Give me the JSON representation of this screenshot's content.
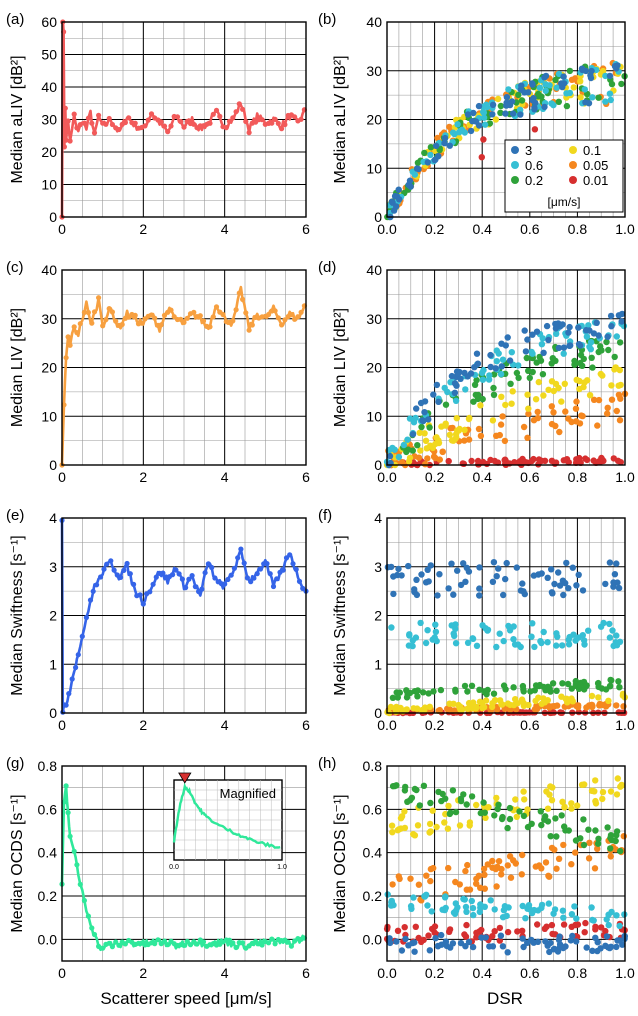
{
  "figure": {
    "bottom_xlabel_left": "Scatterer speed [μm/s]",
    "bottom_xlabel_right": "DSR",
    "legend_unit": "[μm/s]",
    "inset_label": "Magnified",
    "inset_xticks": [
      "0.0",
      "1.0"
    ]
  },
  "chart_data": [
    {
      "id": "a",
      "panel_label": "(a)",
      "type": "line",
      "side": "left",
      "ylabel": "Median aLIV [dB²]",
      "xlim": [
        0,
        6
      ],
      "ylim": [
        0,
        60
      ],
      "xticks": [
        0,
        2,
        4,
        6
      ],
      "yticks": [
        0,
        10,
        20,
        30,
        40,
        50,
        60
      ],
      "grid": true,
      "color": "#f25a5a",
      "series": [
        {
          "x": [
            0,
            0.02,
            0.04,
            0.06,
            0.08,
            0.1,
            0.15,
            0.2,
            0.3,
            0.4,
            0.5,
            0.6,
            0.7,
            0.8,
            0.9,
            1.0,
            1.2,
            1.4,
            1.6,
            1.8,
            2.0,
            2.2,
            2.4,
            2.6,
            2.8,
            3.0,
            3.2,
            3.4,
            3.6,
            3.8,
            4.0,
            4.2,
            4.4,
            4.6,
            4.8,
            5.0,
            5.2,
            5.4,
            5.6,
            5.8,
            6.0
          ],
          "y": [
            0,
            60,
            58,
            22,
            33,
            24,
            29,
            23,
            31,
            26,
            30,
            27,
            32,
            25,
            31,
            28,
            30,
            26,
            31,
            28,
            27,
            32,
            29,
            26,
            31,
            28,
            30,
            27,
            29,
            32,
            28,
            30,
            35,
            27,
            31,
            29,
            30,
            28,
            31,
            29,
            33
          ]
        }
      ]
    },
    {
      "id": "b",
      "panel_label": "(b)",
      "type": "scatter",
      "side": "right",
      "ylabel": "Median aLIV [dB²]",
      "xlim": [
        0,
        1
      ],
      "ylim": [
        0,
        40
      ],
      "xticks": [
        0,
        0.2,
        0.4,
        0.6,
        0.8,
        1.0
      ],
      "yticks": [
        0,
        10,
        20,
        30,
        40
      ],
      "grid": true,
      "model": "sat",
      "params": {
        "max": 29,
        "k": 3.2,
        "spread": 3.0,
        "floor": 0
      },
      "legend": true,
      "legend_placement": "bottom-right"
    },
    {
      "id": "c",
      "panel_label": "(c)",
      "type": "line",
      "side": "left",
      "ylabel": "Median LIV [dB²]",
      "xlim": [
        0,
        6
      ],
      "ylim": [
        0,
        40
      ],
      "xticks": [
        0,
        2,
        4,
        6
      ],
      "yticks": [
        0,
        10,
        20,
        30,
        40
      ],
      "grid": true,
      "color": "#f7a040",
      "series": [
        {
          "x": [
            0,
            0.05,
            0.1,
            0.15,
            0.2,
            0.3,
            0.4,
            0.5,
            0.6,
            0.7,
            0.8,
            0.9,
            1.0,
            1.2,
            1.4,
            1.6,
            1.8,
            2.0,
            2.2,
            2.4,
            2.6,
            2.8,
            3.0,
            3.2,
            3.4,
            3.6,
            3.8,
            4.0,
            4.2,
            4.4,
            4.6,
            4.8,
            5.0,
            5.2,
            5.4,
            5.6,
            5.8,
            6.0
          ],
          "y": [
            0,
            12,
            22,
            26,
            25,
            28,
            27,
            30,
            33,
            29,
            31,
            34,
            29,
            32,
            28,
            31,
            30,
            29,
            31,
            28,
            32,
            30,
            29,
            31,
            30,
            28,
            33,
            30,
            29,
            36,
            28,
            31,
            30,
            32,
            29,
            31,
            30,
            33
          ]
        }
      ]
    },
    {
      "id": "d",
      "panel_label": "(d)",
      "type": "scatter",
      "side": "right",
      "ylabel": "Median LIV [dB²]",
      "xlim": [
        0,
        1
      ],
      "ylim": [
        0,
        40
      ],
      "xticks": [
        0,
        0.2,
        0.4,
        0.6,
        0.8,
        1.0
      ],
      "yticks": [
        0,
        10,
        20,
        30,
        40
      ],
      "grid": true,
      "model": "liv",
      "params": {
        "spread": 2.5
      }
    },
    {
      "id": "e",
      "panel_label": "(e)",
      "type": "line",
      "side": "left",
      "ylabel": "Median Swiftness [s⁻¹]",
      "xlim": [
        0,
        6
      ],
      "ylim": [
        0,
        4
      ],
      "xticks": [
        0,
        2,
        4,
        6
      ],
      "yticks": [
        0,
        1,
        2,
        3,
        4
      ],
      "grid": true,
      "color": "#3564e8",
      "series": [
        {
          "x": [
            0,
            0.02,
            0.05,
            0.1,
            0.2,
            0.3,
            0.4,
            0.5,
            0.6,
            0.7,
            0.8,
            0.9,
            1.0,
            1.1,
            1.2,
            1.4,
            1.6,
            1.8,
            2.0,
            2.2,
            2.4,
            2.6,
            2.8,
            3.0,
            3.2,
            3.4,
            3.6,
            3.8,
            4.0,
            4.2,
            4.4,
            4.6,
            4.8,
            5.0,
            5.2,
            5.4,
            5.6,
            5.8,
            6.0
          ],
          "y": [
            4,
            0,
            0.1,
            0.2,
            0.5,
            0.9,
            1.2,
            1.6,
            1.9,
            2.3,
            2.6,
            2.7,
            2.9,
            3.0,
            3.1,
            2.8,
            3.0,
            2.5,
            2.3,
            2.6,
            2.9,
            2.7,
            3.0,
            2.6,
            2.8,
            2.4,
            3.1,
            2.7,
            2.6,
            2.9,
            3.3,
            2.7,
            2.9,
            3.1,
            2.6,
            2.9,
            3.3,
            2.8,
            2.5
          ]
        }
      ]
    },
    {
      "id": "f",
      "panel_label": "(f)",
      "type": "scatter",
      "side": "right",
      "ylabel": "Median Swiftness [s⁻¹]",
      "xlim": [
        0,
        1
      ],
      "ylim": [
        0,
        4
      ],
      "xticks": [
        0,
        0.2,
        0.4,
        0.6,
        0.8,
        1.0
      ],
      "yticks": [
        0,
        1,
        2,
        3,
        4
      ],
      "grid": true,
      "model": "flat",
      "params": {
        "levels": [
          2.75,
          1.6,
          0.4,
          0.05,
          0.02,
          0.01
        ],
        "slopes": [
          0,
          0,
          0.2,
          0.3,
          0.15,
          0
        ],
        "spread": [
          0.35,
          0.25,
          0.1,
          0.08,
          0.04,
          0.01
        ]
      }
    },
    {
      "id": "g",
      "panel_label": "(g)",
      "type": "line",
      "side": "left",
      "ylabel": "Median OCDS [s⁻¹]",
      "xlim": [
        0,
        6
      ],
      "ylim": [
        -0.1,
        0.8
      ],
      "xticks": [
        0,
        2,
        4,
        6
      ],
      "yticks": [
        0.0,
        0.2,
        0.4,
        0.6,
        0.8
      ],
      "grid": true,
      "color": "#2fe89a",
      "series": [
        {
          "x": [
            0,
            0.05,
            0.1,
            0.15,
            0.2,
            0.3,
            0.4,
            0.5,
            0.6,
            0.7,
            0.8,
            0.9,
            1.0,
            1.2,
            1.4,
            1.6,
            1.8,
            2.0,
            2.4,
            2.8,
            3.2,
            3.6,
            4.0,
            4.4,
            4.8,
            5.2,
            5.6,
            6.0
          ],
          "y": [
            0.25,
            0.62,
            0.7,
            0.58,
            0.48,
            0.4,
            0.3,
            0.22,
            0.14,
            0.08,
            0.02,
            -0.03,
            -0.04,
            -0.02,
            -0.03,
            -0.01,
            -0.02,
            -0.02,
            -0.01,
            -0.03,
            -0.01,
            -0.02,
            -0.01,
            -0.03,
            -0.02,
            -0.01,
            -0.02,
            0.01
          ]
        }
      ]
    },
    {
      "id": "h",
      "panel_label": "(h)",
      "type": "scatter",
      "side": "right",
      "ylabel": "Median OCDS [s⁻¹]",
      "xlim": [
        0,
        1
      ],
      "ylim": [
        -0.1,
        0.8
      ],
      "xticks": [
        0,
        0.2,
        0.4,
        0.6,
        0.8,
        1.0
      ],
      "yticks": [
        0.0,
        0.2,
        0.4,
        0.6,
        0.8
      ],
      "grid": true,
      "model": "flat",
      "params": {
        "levels": [
          -0.02,
          0.18,
          0.7,
          0.52,
          0.22,
          0.02
        ],
        "slopes": [
          0,
          -0.08,
          -0.25,
          0.18,
          0.2,
          0.02
        ],
        "spread": [
          0.04,
          0.04,
          0.06,
          0.07,
          0.07,
          0.04
        ]
      }
    }
  ],
  "series_legend": [
    {
      "label": "3",
      "color": "#2f73b6"
    },
    {
      "label": "0.6",
      "color": "#36bfd4"
    },
    {
      "label": "0.2",
      "color": "#2fa23a"
    },
    {
      "label": "0.1",
      "color": "#f1d81e"
    },
    {
      "label": "0.05",
      "color": "#f5871f"
    },
    {
      "label": "0.01",
      "color": "#d62f2f"
    }
  ],
  "inset": {
    "x": [
      0.0,
      0.05,
      0.1,
      0.15,
      0.2,
      0.25,
      0.3,
      0.4,
      0.5,
      0.6,
      0.7,
      0.8,
      0.9,
      1.0
    ],
    "y": [
      0.2,
      0.55,
      0.78,
      0.72,
      0.6,
      0.52,
      0.46,
      0.38,
      0.32,
      0.27,
      0.22,
      0.18,
      0.15,
      0.13
    ],
    "peak_x": 0.1,
    "peak_marker_color": "#d62f2f"
  }
}
